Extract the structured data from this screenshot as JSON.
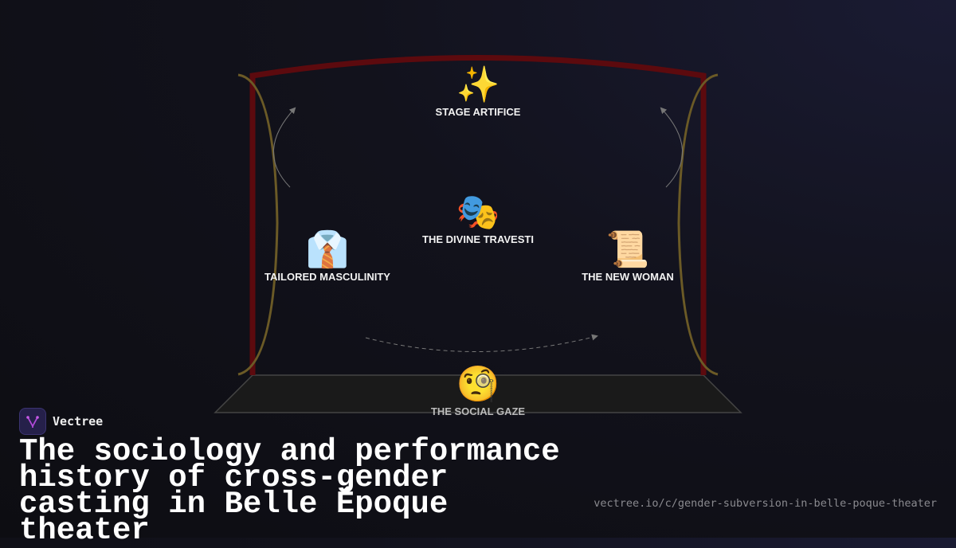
{
  "diagram": {
    "nodes": [
      {
        "id": "stage-artifice",
        "label": "STAGE ARTIFICE",
        "icon": "sparkles-icon",
        "emoji": "✨"
      },
      {
        "id": "divine-travesti",
        "label": "THE DIVINE TRAVESTI",
        "icon": "performing-arts-masks-icon",
        "emoji": "🎭"
      },
      {
        "id": "tailored-masculinity",
        "label": "TAILORED MASCULINITY",
        "icon": "shirt-and-tie-icon",
        "emoji": "👔"
      },
      {
        "id": "new-woman",
        "label": "THE NEW WOMAN",
        "icon": "scroll-icon",
        "emoji": "📜"
      },
      {
        "id": "social-gaze",
        "label": "THE SOCIAL GAZE",
        "icon": "monocle-face-icon",
        "emoji": "🧐"
      }
    ],
    "colors": {
      "curtain_frame": "#5c0a0e",
      "curtain_drape": "#6b5a26",
      "stage_floor": "#1a1a1a",
      "arrows": "#777777"
    }
  },
  "brand": {
    "name": "Vectree",
    "logo_color": "#b04ad8"
  },
  "title": "The sociology and performance history of cross-gender casting in Belle Époque theater",
  "url": "vectree.io/c/gender-subversion-in-belle-poque-theater"
}
